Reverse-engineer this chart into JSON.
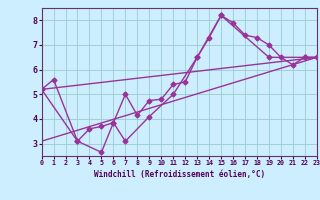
{
  "background_color": "#cceeff",
  "grid_color": "#99cccc",
  "line_color": "#993399",
  "marker": "D",
  "marker_size": 2.5,
  "line_width": 1.0,
  "xlabel": "Windchill (Refroidissement éolien,°C)",
  "xlim": [
    0,
    23
  ],
  "ylim": [
    2.5,
    8.5
  ],
  "yticks": [
    3,
    4,
    5,
    6,
    7,
    8
  ],
  "xticks": [
    0,
    1,
    2,
    3,
    4,
    5,
    6,
    7,
    8,
    9,
    10,
    11,
    12,
    13,
    14,
    15,
    16,
    17,
    18,
    19,
    20,
    21,
    22,
    23
  ],
  "series1_x": [
    0,
    1,
    3,
    4,
    5,
    6,
    7,
    8,
    9,
    10,
    11,
    12,
    13,
    14,
    15,
    16,
    17,
    18,
    19,
    20,
    21,
    22,
    23
  ],
  "series1_y": [
    5.2,
    5.6,
    3.1,
    3.6,
    3.7,
    3.85,
    5.0,
    4.15,
    4.75,
    4.8,
    5.4,
    5.5,
    6.5,
    7.3,
    8.2,
    7.9,
    7.4,
    7.3,
    7.0,
    6.5,
    6.2,
    6.5,
    6.5
  ],
  "series2_x": [
    0,
    3,
    5,
    6,
    7,
    9,
    11,
    13,
    15,
    19,
    22,
    23
  ],
  "series2_y": [
    5.2,
    3.1,
    2.65,
    3.85,
    3.1,
    4.1,
    5.0,
    6.5,
    8.2,
    6.5,
    6.5,
    6.5
  ],
  "trend1_x": [
    0,
    23
  ],
  "trend1_y": [
    3.1,
    6.5
  ],
  "trend2_x": [
    0,
    23
  ],
  "trend2_y": [
    5.2,
    6.5
  ]
}
